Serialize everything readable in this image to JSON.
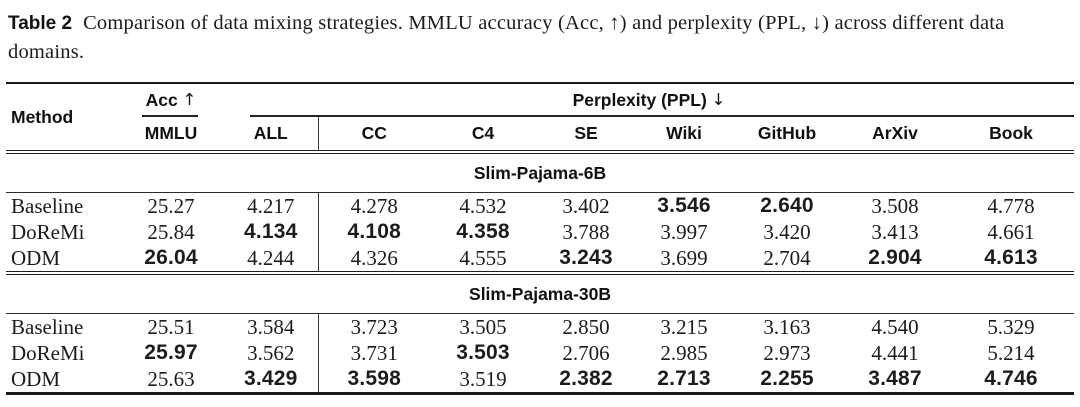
{
  "caption": {
    "label": "Table 2",
    "text": "Comparison of data mixing strategies. MMLU accuracy (Acc, ↑) and perplexity (PPL, ↓) across different data domains."
  },
  "table": {
    "method_header": "Method",
    "acc_group_label": "Acc",
    "acc_arrow": "↑",
    "ppl_group_label": "Perplexity (PPL)",
    "ppl_arrow": "↓",
    "subheaders": [
      "MMLU",
      "ALL",
      "CC",
      "C4",
      "SE",
      "Wiki",
      "GitHub",
      "ArXiv",
      "Book"
    ],
    "sections": [
      {
        "title": "Slim-Pajama-6B",
        "rows": [
          {
            "method": "Baseline",
            "values": [
              {
                "v": "25.27",
                "b": false
              },
              {
                "v": "4.217",
                "b": false
              },
              {
                "v": "4.278",
                "b": false
              },
              {
                "v": "4.532",
                "b": false
              },
              {
                "v": "3.402",
                "b": false
              },
              {
                "v": "3.546",
                "b": true
              },
              {
                "v": "2.640",
                "b": true
              },
              {
                "v": "3.508",
                "b": false
              },
              {
                "v": "4.778",
                "b": false
              }
            ]
          },
          {
            "method": "DoReMi",
            "values": [
              {
                "v": "25.84",
                "b": false
              },
              {
                "v": "4.134",
                "b": true
              },
              {
                "v": "4.108",
                "b": true
              },
              {
                "v": "4.358",
                "b": true
              },
              {
                "v": "3.788",
                "b": false
              },
              {
                "v": "3.997",
                "b": false
              },
              {
                "v": "3.420",
                "b": false
              },
              {
                "v": "3.413",
                "b": false
              },
              {
                "v": "4.661",
                "b": false
              }
            ]
          },
          {
            "method": "ODM",
            "values": [
              {
                "v": "26.04",
                "b": true
              },
              {
                "v": "4.244",
                "b": false
              },
              {
                "v": "4.326",
                "b": false
              },
              {
                "v": "4.555",
                "b": false
              },
              {
                "v": "3.243",
                "b": true
              },
              {
                "v": "3.699",
                "b": false
              },
              {
                "v": "2.704",
                "b": false
              },
              {
                "v": "2.904",
                "b": true
              },
              {
                "v": "4.613",
                "b": true
              }
            ]
          }
        ]
      },
      {
        "title": "Slim-Pajama-30B",
        "rows": [
          {
            "method": "Baseline",
            "values": [
              {
                "v": "25.51",
                "b": false
              },
              {
                "v": "3.584",
                "b": false
              },
              {
                "v": "3.723",
                "b": false
              },
              {
                "v": "3.505",
                "b": false
              },
              {
                "v": "2.850",
                "b": false
              },
              {
                "v": "3.215",
                "b": false
              },
              {
                "v": "3.163",
                "b": false
              },
              {
                "v": "4.540",
                "b": false
              },
              {
                "v": "5.329",
                "b": false
              }
            ]
          },
          {
            "method": "DoReMi",
            "values": [
              {
                "v": "25.97",
                "b": true
              },
              {
                "v": "3.562",
                "b": false
              },
              {
                "v": "3.731",
                "b": false
              },
              {
                "v": "3.503",
                "b": true
              },
              {
                "v": "2.706",
                "b": false
              },
              {
                "v": "2.985",
                "b": false
              },
              {
                "v": "2.973",
                "b": false
              },
              {
                "v": "4.441",
                "b": false
              },
              {
                "v": "5.214",
                "b": false
              }
            ]
          },
          {
            "method": "ODM",
            "values": [
              {
                "v": "25.63",
                "b": false
              },
              {
                "v": "3.429",
                "b": true
              },
              {
                "v": "3.598",
                "b": true
              },
              {
                "v": "3.519",
                "b": false
              },
              {
                "v": "2.382",
                "b": true
              },
              {
                "v": "2.713",
                "b": true
              },
              {
                "v": "2.255",
                "b": true
              },
              {
                "v": "3.487",
                "b": true
              },
              {
                "v": "4.746",
                "b": true
              }
            ]
          }
        ]
      }
    ]
  },
  "colors": {
    "text": "#161616",
    "rule": "#1a1a1a",
    "background": "#ffffff"
  }
}
